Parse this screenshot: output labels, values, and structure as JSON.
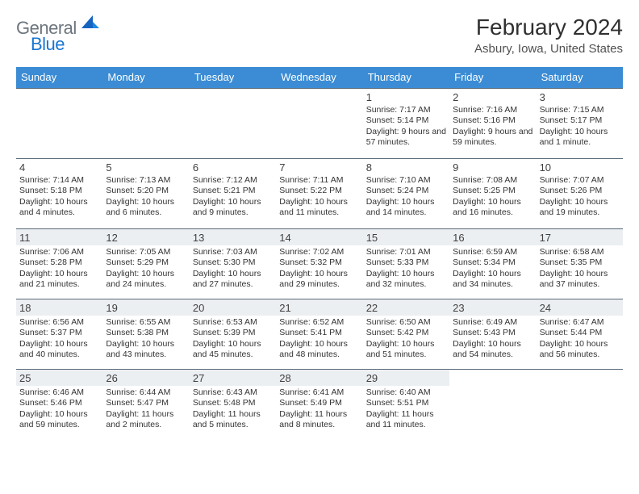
{
  "logo": {
    "general": "General",
    "blue": "Blue"
  },
  "header": {
    "monthYear": "February 2024",
    "location": "Asbury, Iowa, United States"
  },
  "colors": {
    "headerBar": "#3b8cd4",
    "logoBlue": "#1976d2",
    "logoGray": "#6c757d",
    "divider": "#5a6a7a",
    "shade": "#eceff2"
  },
  "weekdays": [
    "Sunday",
    "Monday",
    "Tuesday",
    "Wednesday",
    "Thursday",
    "Friday",
    "Saturday"
  ],
  "weeks": [
    [
      {
        "blank": true
      },
      {
        "blank": true
      },
      {
        "blank": true
      },
      {
        "blank": true
      },
      {
        "day": "1",
        "shade": false,
        "sunrise": "Sunrise: 7:17 AM",
        "sunset": "Sunset: 5:14 PM",
        "daylight": "Daylight: 9 hours and 57 minutes."
      },
      {
        "day": "2",
        "shade": false,
        "sunrise": "Sunrise: 7:16 AM",
        "sunset": "Sunset: 5:16 PM",
        "daylight": "Daylight: 9 hours and 59 minutes."
      },
      {
        "day": "3",
        "shade": false,
        "sunrise": "Sunrise: 7:15 AM",
        "sunset": "Sunset: 5:17 PM",
        "daylight": "Daylight: 10 hours and 1 minute."
      }
    ],
    [
      {
        "day": "4",
        "shade": false,
        "sunrise": "Sunrise: 7:14 AM",
        "sunset": "Sunset: 5:18 PM",
        "daylight": "Daylight: 10 hours and 4 minutes."
      },
      {
        "day": "5",
        "shade": false,
        "sunrise": "Sunrise: 7:13 AM",
        "sunset": "Sunset: 5:20 PM",
        "daylight": "Daylight: 10 hours and 6 minutes."
      },
      {
        "day": "6",
        "shade": false,
        "sunrise": "Sunrise: 7:12 AM",
        "sunset": "Sunset: 5:21 PM",
        "daylight": "Daylight: 10 hours and 9 minutes."
      },
      {
        "day": "7",
        "shade": false,
        "sunrise": "Sunrise: 7:11 AM",
        "sunset": "Sunset: 5:22 PM",
        "daylight": "Daylight: 10 hours and 11 minutes."
      },
      {
        "day": "8",
        "shade": false,
        "sunrise": "Sunrise: 7:10 AM",
        "sunset": "Sunset: 5:24 PM",
        "daylight": "Daylight: 10 hours and 14 minutes."
      },
      {
        "day": "9",
        "shade": false,
        "sunrise": "Sunrise: 7:08 AM",
        "sunset": "Sunset: 5:25 PM",
        "daylight": "Daylight: 10 hours and 16 minutes."
      },
      {
        "day": "10",
        "shade": false,
        "sunrise": "Sunrise: 7:07 AM",
        "sunset": "Sunset: 5:26 PM",
        "daylight": "Daylight: 10 hours and 19 minutes."
      }
    ],
    [
      {
        "day": "11",
        "shade": true,
        "sunrise": "Sunrise: 7:06 AM",
        "sunset": "Sunset: 5:28 PM",
        "daylight": "Daylight: 10 hours and 21 minutes."
      },
      {
        "day": "12",
        "shade": true,
        "sunrise": "Sunrise: 7:05 AM",
        "sunset": "Sunset: 5:29 PM",
        "daylight": "Daylight: 10 hours and 24 minutes."
      },
      {
        "day": "13",
        "shade": true,
        "sunrise": "Sunrise: 7:03 AM",
        "sunset": "Sunset: 5:30 PM",
        "daylight": "Daylight: 10 hours and 27 minutes."
      },
      {
        "day": "14",
        "shade": true,
        "sunrise": "Sunrise: 7:02 AM",
        "sunset": "Sunset: 5:32 PM",
        "daylight": "Daylight: 10 hours and 29 minutes."
      },
      {
        "day": "15",
        "shade": true,
        "sunrise": "Sunrise: 7:01 AM",
        "sunset": "Sunset: 5:33 PM",
        "daylight": "Daylight: 10 hours and 32 minutes."
      },
      {
        "day": "16",
        "shade": true,
        "sunrise": "Sunrise: 6:59 AM",
        "sunset": "Sunset: 5:34 PM",
        "daylight": "Daylight: 10 hours and 34 minutes."
      },
      {
        "day": "17",
        "shade": true,
        "sunrise": "Sunrise: 6:58 AM",
        "sunset": "Sunset: 5:35 PM",
        "daylight": "Daylight: 10 hours and 37 minutes."
      }
    ],
    [
      {
        "day": "18",
        "shade": true,
        "sunrise": "Sunrise: 6:56 AM",
        "sunset": "Sunset: 5:37 PM",
        "daylight": "Daylight: 10 hours and 40 minutes."
      },
      {
        "day": "19",
        "shade": true,
        "sunrise": "Sunrise: 6:55 AM",
        "sunset": "Sunset: 5:38 PM",
        "daylight": "Daylight: 10 hours and 43 minutes."
      },
      {
        "day": "20",
        "shade": true,
        "sunrise": "Sunrise: 6:53 AM",
        "sunset": "Sunset: 5:39 PM",
        "daylight": "Daylight: 10 hours and 45 minutes."
      },
      {
        "day": "21",
        "shade": true,
        "sunrise": "Sunrise: 6:52 AM",
        "sunset": "Sunset: 5:41 PM",
        "daylight": "Daylight: 10 hours and 48 minutes."
      },
      {
        "day": "22",
        "shade": true,
        "sunrise": "Sunrise: 6:50 AM",
        "sunset": "Sunset: 5:42 PM",
        "daylight": "Daylight: 10 hours and 51 minutes."
      },
      {
        "day": "23",
        "shade": true,
        "sunrise": "Sunrise: 6:49 AM",
        "sunset": "Sunset: 5:43 PM",
        "daylight": "Daylight: 10 hours and 54 minutes."
      },
      {
        "day": "24",
        "shade": true,
        "sunrise": "Sunrise: 6:47 AM",
        "sunset": "Sunset: 5:44 PM",
        "daylight": "Daylight: 10 hours and 56 minutes."
      }
    ],
    [
      {
        "day": "25",
        "shade": true,
        "sunrise": "Sunrise: 6:46 AM",
        "sunset": "Sunset: 5:46 PM",
        "daylight": "Daylight: 10 hours and 59 minutes."
      },
      {
        "day": "26",
        "shade": true,
        "sunrise": "Sunrise: 6:44 AM",
        "sunset": "Sunset: 5:47 PM",
        "daylight": "Daylight: 11 hours and 2 minutes."
      },
      {
        "day": "27",
        "shade": true,
        "sunrise": "Sunrise: 6:43 AM",
        "sunset": "Sunset: 5:48 PM",
        "daylight": "Daylight: 11 hours and 5 minutes."
      },
      {
        "day": "28",
        "shade": true,
        "sunrise": "Sunrise: 6:41 AM",
        "sunset": "Sunset: 5:49 PM",
        "daylight": "Daylight: 11 hours and 8 minutes."
      },
      {
        "day": "29",
        "shade": true,
        "sunrise": "Sunrise: 6:40 AM",
        "sunset": "Sunset: 5:51 PM",
        "daylight": "Daylight: 11 hours and 11 minutes."
      },
      {
        "blank": true
      },
      {
        "blank": true
      }
    ]
  ]
}
